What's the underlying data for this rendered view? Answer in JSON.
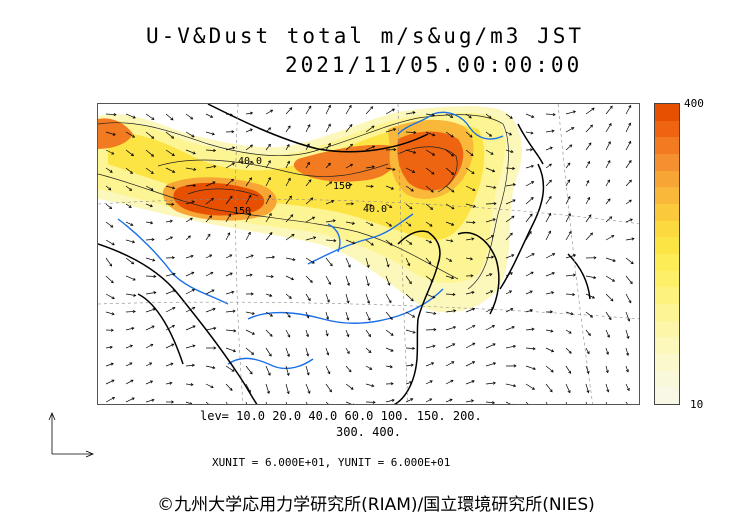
{
  "title": {
    "line1": "U-V&Dust total m/s&ug/m3 JST",
    "line2": "2021/11/05.00:00:00"
  },
  "colorbar": {
    "max_label": "400",
    "min_label": "10",
    "colors": [
      "#e65000",
      "#ee6410",
      "#f27a20",
      "#f59030",
      "#f7a535",
      "#f9b83a",
      "#fbca3c",
      "#fcd93e",
      "#fde445",
      "#fdec55",
      "#fdf068",
      "#fdf27e",
      "#fdf493",
      "#fdf6a8",
      "#fcf7bb",
      "#fbf8cc",
      "#faf8da",
      "#f9f8e6"
    ]
  },
  "levels": {
    "line1": "lev= 10.0 20.0 40.0 60.0 100. 150. 200.",
    "line2": "300. 400."
  },
  "units": "XUNIT = 6.000E+01, YUNIT = 6.000E+01",
  "map": {
    "contour_labels": [
      "40.0",
      "150",
      "150",
      "40.0"
    ],
    "colors": {
      "coast": "#000000",
      "river": "#1a6fe8",
      "grid": "#888888"
    }
  },
  "copyright": "©九州大学応用力学研究所(RIAM)/国立環境研究所(NIES)"
}
